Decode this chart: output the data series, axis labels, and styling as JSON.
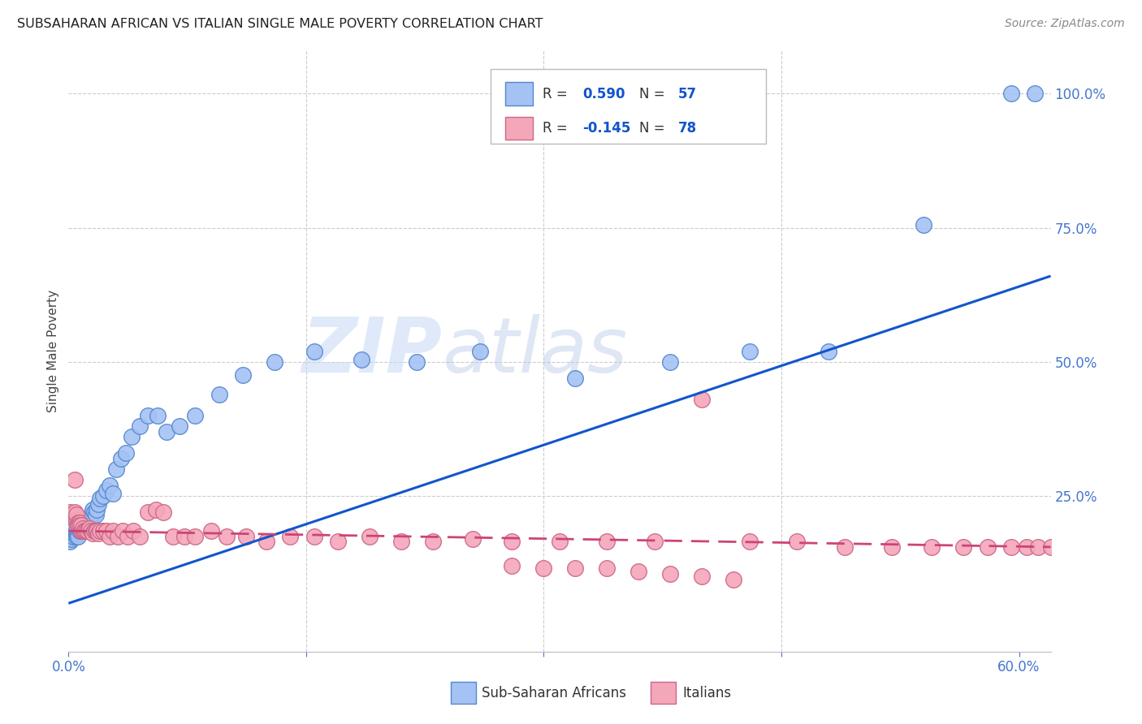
{
  "title": "SUBSAHARAN AFRICAN VS ITALIAN SINGLE MALE POVERTY CORRELATION CHART",
  "source": "Source: ZipAtlas.com",
  "ylabel": "Single Male Poverty",
  "right_yticks": [
    "100.0%",
    "75.0%",
    "50.0%",
    "25.0%"
  ],
  "right_ytick_vals": [
    1.0,
    0.75,
    0.5,
    0.25
  ],
  "legend_label1": "Sub-Saharan Africans",
  "legend_label2": "Italians",
  "R1": "0.590",
  "N1": "57",
  "R2": "-0.145",
  "N2": "78",
  "color_blue": "#a4c2f4",
  "color_pink": "#f4a7b9",
  "color_blue_line": "#1155cc",
  "color_pink_line": "#cc4477",
  "watermark_zip": "ZIP",
  "watermark_atlas": "atlas",
  "xmin": 0.0,
  "xmax": 0.62,
  "ymin": -0.04,
  "ymax": 1.08,
  "blue_scatter_x": [
    0.001,
    0.002,
    0.003,
    0.003,
    0.004,
    0.004,
    0.005,
    0.005,
    0.005,
    0.006,
    0.006,
    0.007,
    0.007,
    0.008,
    0.008,
    0.009,
    0.009,
    0.01,
    0.01,
    0.011,
    0.012,
    0.013,
    0.014,
    0.015,
    0.016,
    0.017,
    0.018,
    0.019,
    0.02,
    0.022,
    0.024,
    0.026,
    0.028,
    0.03,
    0.033,
    0.036,
    0.04,
    0.045,
    0.05,
    0.056,
    0.062,
    0.07,
    0.08,
    0.095,
    0.11,
    0.13,
    0.155,
    0.185,
    0.22,
    0.26,
    0.32,
    0.38,
    0.43,
    0.48,
    0.54,
    0.595,
    0.61
  ],
  "blue_scatter_y": [
    0.165,
    0.17,
    0.175,
    0.18,
    0.185,
    0.19,
    0.175,
    0.18,
    0.185,
    0.18,
    0.175,
    0.185,
    0.19,
    0.185,
    0.195,
    0.19,
    0.2,
    0.195,
    0.185,
    0.2,
    0.195,
    0.205,
    0.215,
    0.225,
    0.22,
    0.215,
    0.225,
    0.235,
    0.245,
    0.25,
    0.26,
    0.27,
    0.255,
    0.3,
    0.32,
    0.33,
    0.36,
    0.38,
    0.4,
    0.4,
    0.37,
    0.38,
    0.4,
    0.44,
    0.475,
    0.5,
    0.52,
    0.505,
    0.5,
    0.52,
    0.47,
    0.5,
    0.52,
    0.52,
    0.755,
    1.0,
    1.0
  ],
  "pink_scatter_x": [
    0.001,
    0.002,
    0.003,
    0.004,
    0.004,
    0.005,
    0.005,
    0.006,
    0.006,
    0.007,
    0.007,
    0.008,
    0.008,
    0.009,
    0.009,
    0.01,
    0.01,
    0.011,
    0.012,
    0.013,
    0.014,
    0.015,
    0.016,
    0.017,
    0.018,
    0.019,
    0.02,
    0.022,
    0.024,
    0.026,
    0.028,
    0.031,
    0.034,
    0.037,
    0.041,
    0.045,
    0.05,
    0.055,
    0.06,
    0.066,
    0.073,
    0.08,
    0.09,
    0.1,
    0.112,
    0.125,
    0.14,
    0.155,
    0.17,
    0.19,
    0.21,
    0.23,
    0.255,
    0.28,
    0.31,
    0.34,
    0.37,
    0.4,
    0.43,
    0.46,
    0.49,
    0.52,
    0.545,
    0.565,
    0.58,
    0.595,
    0.605,
    0.612,
    0.62,
    0.63,
    0.28,
    0.3,
    0.32,
    0.34,
    0.36,
    0.38,
    0.4,
    0.42
  ],
  "pink_scatter_y": [
    0.22,
    0.215,
    0.21,
    0.28,
    0.22,
    0.205,
    0.215,
    0.2,
    0.195,
    0.2,
    0.195,
    0.185,
    0.195,
    0.185,
    0.19,
    0.185,
    0.185,
    0.185,
    0.185,
    0.19,
    0.185,
    0.18,
    0.185,
    0.185,
    0.185,
    0.18,
    0.185,
    0.185,
    0.185,
    0.175,
    0.185,
    0.175,
    0.185,
    0.175,
    0.185,
    0.175,
    0.22,
    0.225,
    0.22,
    0.175,
    0.175,
    0.175,
    0.185,
    0.175,
    0.175,
    0.165,
    0.175,
    0.175,
    0.165,
    0.175,
    0.165,
    0.165,
    0.17,
    0.165,
    0.165,
    0.165,
    0.165,
    0.43,
    0.165,
    0.165,
    0.155,
    0.155,
    0.155,
    0.155,
    0.155,
    0.155,
    0.155,
    0.155,
    0.155,
    0.155,
    0.12,
    0.115,
    0.115,
    0.115,
    0.11,
    0.105,
    0.1,
    0.095
  ],
  "blue_line_x": [
    0.0,
    0.62
  ],
  "blue_line_y": [
    0.05,
    0.66
  ],
  "pink_line_x": [
    0.0,
    0.62
  ],
  "pink_line_y": [
    0.185,
    0.155
  ]
}
